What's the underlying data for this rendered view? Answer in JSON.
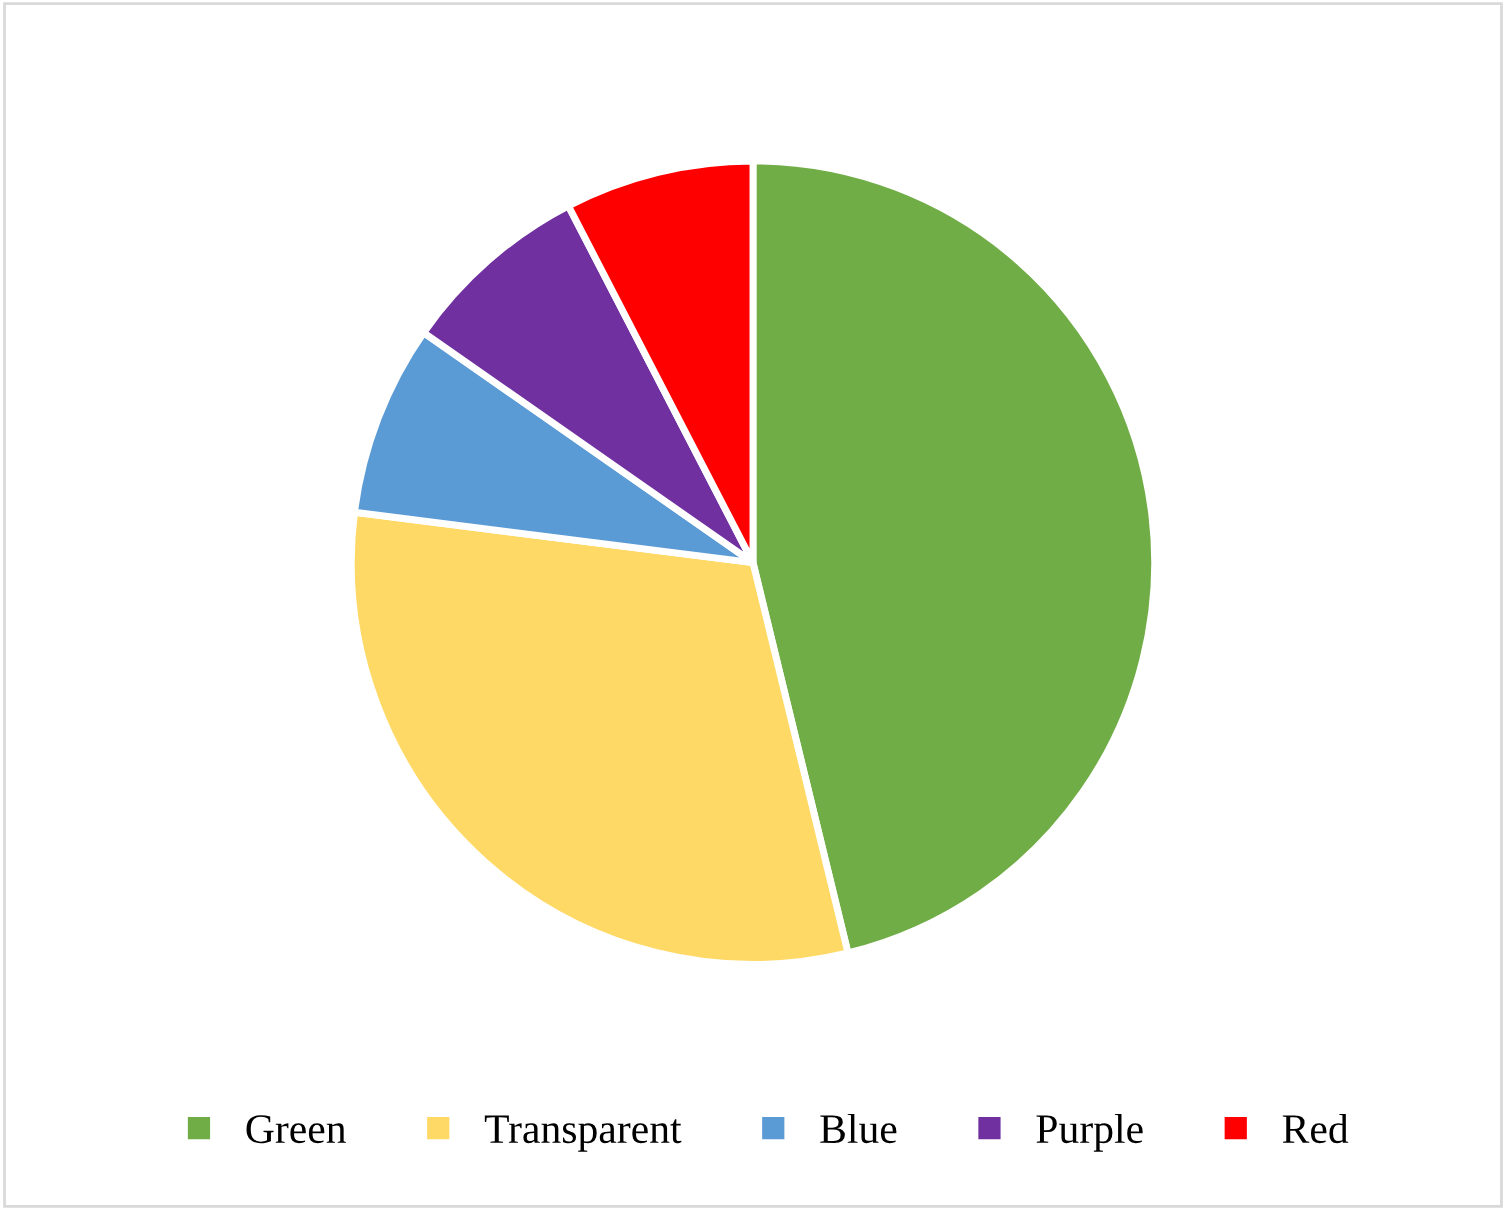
{
  "chart_data": {
    "type": "pie",
    "categories": [
      "Green",
      "Transparent",
      "Blue",
      "Purple",
      "Red"
    ],
    "values": [
      46.2,
      30.8,
      7.7,
      7.7,
      7.6
    ],
    "colors": [
      "#70ad47",
      "#ffd966",
      "#5b9bd5",
      "#7030a0",
      "#ff0000"
    ],
    "legend": "bottom"
  }
}
